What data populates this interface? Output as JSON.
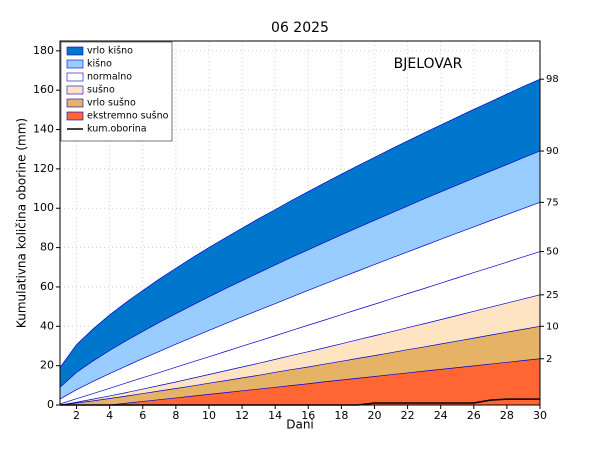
{
  "chart_data": {
    "type": "area",
    "title": "06 2025",
    "annotation": "BJELOVAR",
    "xlabel": "Dani",
    "ylabel": "Kumulativna količina oborine (mm)",
    "x": [
      1,
      2,
      3,
      4,
      5,
      6,
      7,
      8,
      9,
      10,
      11,
      12,
      13,
      14,
      15,
      16,
      17,
      18,
      19,
      20,
      21,
      22,
      23,
      24,
      25,
      26,
      27,
      28,
      29,
      30
    ],
    "xlim": [
      1,
      30
    ],
    "xticks": [
      2,
      4,
      6,
      8,
      10,
      12,
      14,
      16,
      18,
      20,
      22,
      24,
      26,
      28,
      30
    ],
    "ylim": [
      0,
      185
    ],
    "yticks": [
      0,
      20,
      40,
      60,
      80,
      100,
      120,
      140,
      160,
      180
    ],
    "grid": true,
    "legend": "upper left",
    "line_color": "#0000cc",
    "percentiles": [
      {
        "label": "98",
        "values": [
          19,
          30.7,
          38.7,
          45.8,
          52.2,
          58.2,
          64.0,
          69.5,
          74.9,
          80.0,
          85.0,
          89.9,
          94.7,
          99.3,
          104,
          108.5,
          112.9,
          117.3,
          121.6,
          125.8,
          130.1,
          134.2,
          138.3,
          142.3,
          146.3,
          150.3,
          154.1,
          158,
          161.9,
          165.6
        ]
      },
      {
        "label": "90",
        "values": [
          9,
          16.6,
          22.4,
          27.7,
          32.7,
          37.4,
          42,
          46.4,
          50.7,
          55,
          59.2,
          63.2,
          67.2,
          71.2,
          75.1,
          78.9,
          82.7,
          86.5,
          90.2,
          93.9,
          97.5,
          101.1,
          104.8,
          108.3,
          111.8,
          115.3,
          118.8,
          122.2,
          125.7,
          129.1
        ]
      },
      {
        "label": "75",
        "values": [
          3,
          7.8,
          12,
          16,
          19.8,
          23.6,
          27.2,
          30.9,
          34.4,
          37.9,
          41.4,
          44.8,
          48.2,
          51.5,
          54.9,
          58.3,
          61.6,
          64.9,
          68.1,
          71.4,
          74.6,
          77.8,
          81,
          84.2,
          87.4,
          90.5,
          93.7,
          96.8,
          99.9,
          103
        ]
      },
      {
        "label": "50",
        "values": [
          0.5,
          3.2,
          5.8,
          8.5,
          11.2,
          13.9,
          16.5,
          19.2,
          21.9,
          24.5,
          27.2,
          29.9,
          32.5,
          35.2,
          37.9,
          40.6,
          43.2,
          45.9,
          48.6,
          51.2,
          53.9,
          56.6,
          59.2,
          61.9,
          64.6,
          67.3,
          69.9,
          72.6,
          75.3,
          78
        ]
      },
      {
        "label": "25",
        "values": [
          0,
          1.4,
          3,
          4.6,
          6.3,
          8.1,
          9.9,
          11.7,
          13.6,
          15.5,
          17.4,
          19.3,
          21.2,
          23.2,
          25.2,
          27.1,
          29.1,
          31.1,
          33.2,
          35.2,
          37.2,
          39.3,
          41.3,
          43.4,
          45.5,
          47.6,
          49.7,
          51.8,
          53.9,
          56.0
        ]
      },
      {
        "label": "10",
        "values": [
          0,
          1,
          2.1,
          3.3,
          4.5,
          5.8,
          7.1,
          8.4,
          9.7,
          11.1,
          12.4,
          13.8,
          15.1,
          16.6,
          18,
          19.3,
          20.8,
          22.2,
          23.7,
          25.1,
          26.6,
          28.1,
          29.5,
          31,
          32.5,
          34,
          35.5,
          37,
          38.5,
          40
        ]
      },
      {
        "label": "2",
        "values": [
          0,
          0,
          0,
          0,
          0.9,
          1.8,
          2.7,
          3.6,
          4.5,
          5.4,
          6.3,
          7.2,
          8.1,
          9,
          9.9,
          10.8,
          11.8,
          12.7,
          13.6,
          14.5,
          15.4,
          16.3,
          17.2,
          18.1,
          19,
          19.9,
          20.8,
          21.7,
          22.6,
          23.5
        ]
      }
    ],
    "bands": [
      {
        "name": "vrlo kišno",
        "color": "#0077cc"
      },
      {
        "name": "kišno",
        "color": "#99ccff"
      },
      {
        "name": "normalno",
        "color": "#ffffff"
      },
      {
        "name": "sušno",
        "color": "#ffe4c4"
      },
      {
        "name": "vrlo sušno",
        "color": "#e5b266"
      },
      {
        "name": "ekstremno sušno",
        "color": "#ff6633"
      }
    ],
    "series": [
      {
        "name": "kum.oborina",
        "color": "#000000",
        "values": [
          0,
          0,
          0,
          0,
          0,
          0,
          0,
          0,
          0,
          0,
          0,
          0,
          0,
          0,
          0,
          0,
          0,
          0,
          0,
          1,
          1,
          1,
          1,
          1,
          1,
          1,
          2.5,
          3,
          3,
          3
        ]
      }
    ]
  }
}
